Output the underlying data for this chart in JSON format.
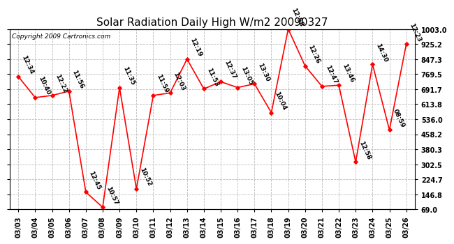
{
  "title": "Solar Radiation Daily High W/m2 20090327",
  "copyright": "Copyright 2009 Cartronics.com",
  "dates": [
    "03/03",
    "03/04",
    "03/05",
    "03/06",
    "03/07",
    "03/08",
    "03/09",
    "03/10",
    "03/11",
    "03/12",
    "03/13",
    "03/14",
    "03/15",
    "03/16",
    "03/17",
    "03/18",
    "03/19",
    "03/20",
    "03/21",
    "03/22",
    "03/23",
    "03/24",
    "03/25",
    "03/26"
  ],
  "values": [
    757,
    648,
    659,
    681,
    159,
    80,
    700,
    175,
    659,
    672,
    847,
    693,
    730,
    700,
    719,
    570,
    1003,
    812,
    706,
    712,
    314,
    820,
    480,
    925
  ],
  "labels": [
    "12:34",
    "10:40",
    "12:22",
    "11:56",
    "12:45",
    "10:57",
    "11:35",
    "10:52",
    "11:59",
    "12:03",
    "12:19",
    "11:53",
    "12:37",
    "13:05",
    "13:30",
    "10:04",
    "12:58",
    "12:26",
    "12:47",
    "13:46",
    "12:58",
    "14:30",
    "08:59",
    "12:23"
  ],
  "ylim_min": 69.0,
  "ylim_max": 1003.0,
  "ytick_labels": [
    "69.0",
    "146.8",
    "224.7",
    "302.5",
    "380.3",
    "458.2",
    "536.0",
    "613.8",
    "691.7",
    "769.5",
    "847.3",
    "925.2",
    "1003.0"
  ],
  "ytick_values": [
    69.0,
    146.8,
    224.7,
    302.5,
    380.3,
    458.2,
    536.0,
    613.8,
    691.7,
    769.5,
    847.3,
    925.2,
    1003.0
  ],
  "line_color": "#ff0000",
  "marker_color": "#ff0000",
  "bg_color": "#ffffff",
  "grid_color": "#bbbbbb",
  "title_fontsize": 11,
  "label_fontsize": 6.5,
  "tick_fontsize": 7,
  "copyright_fontsize": 6.5
}
